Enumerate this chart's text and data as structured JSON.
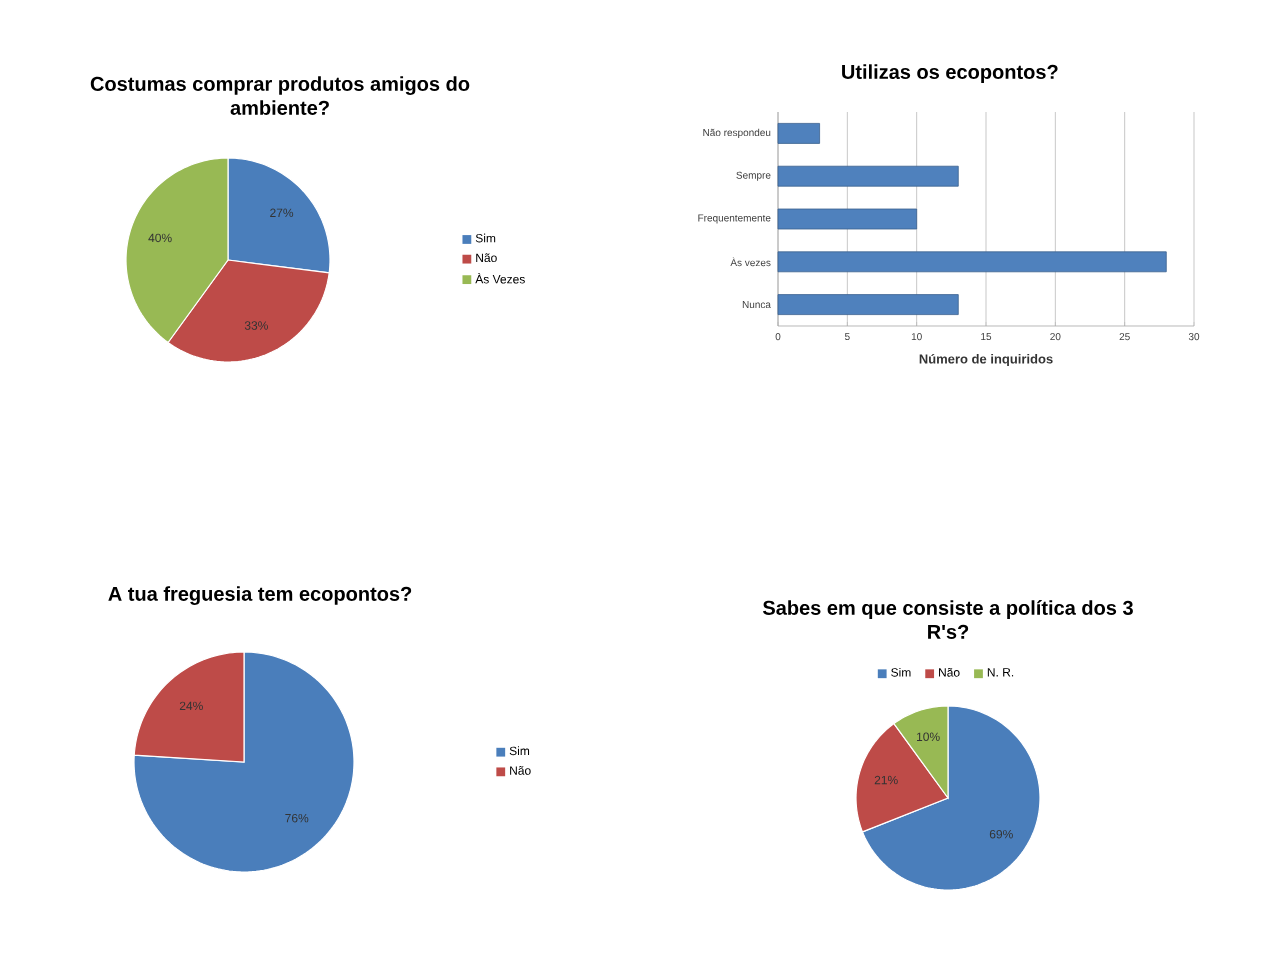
{
  "chart_data": [
    {
      "type": "pie",
      "title": "Costumas comprar produtos amigos do ambiente?",
      "categories": [
        "Sim",
        "Não",
        "Às Vezes"
      ],
      "values": [
        27,
        33,
        40
      ],
      "value_labels": [
        "27%",
        "33%",
        "40%"
      ],
      "colors": [
        "#4a7ebb",
        "#be4b48",
        "#98b954"
      ],
      "legend": "right"
    },
    {
      "type": "bar",
      "orientation": "horizontal",
      "title": "Utilizas os ecopontos?",
      "categories": [
        "Não respondeu",
        "Sempre",
        "Frequentemente",
        "Às vezes",
        "Nunca"
      ],
      "values": [
        3,
        13,
        10,
        28,
        13
      ],
      "color": "#4f81bd",
      "xlim": [
        0,
        30
      ],
      "xticks": [
        0,
        5,
        10,
        15,
        20,
        25,
        30
      ],
      "xlabel": "Número de inquiridos",
      "grid": "x"
    },
    {
      "type": "pie",
      "title": "A tua freguesia tem ecopontos?",
      "categories": [
        "Sim",
        "Não"
      ],
      "values": [
        76,
        24
      ],
      "value_labels": [
        "76%",
        "24%"
      ],
      "colors": [
        "#4a7ebb",
        "#be4b48"
      ],
      "legend": "right"
    },
    {
      "type": "pie",
      "title": "Sabes em que consiste a política dos 3 R's?",
      "categories": [
        "Sim",
        "Não",
        "N. R."
      ],
      "values": [
        69,
        21,
        10
      ],
      "value_labels": [
        "69%",
        "21%",
        "10%"
      ],
      "colors": [
        "#4a7ebb",
        "#be4b48",
        "#98b954"
      ],
      "legend": "top"
    }
  ]
}
